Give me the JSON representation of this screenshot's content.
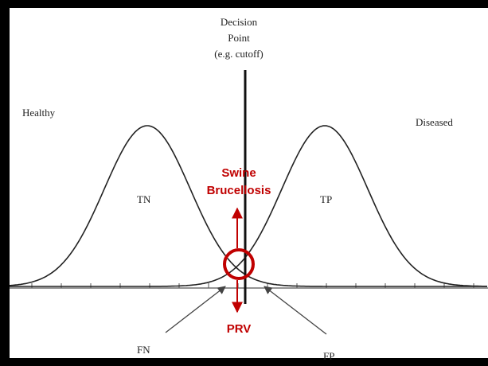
{
  "decision_point": {
    "lines": [
      "Decision",
      "Point",
      "(e.g. cutoff)"
    ]
  },
  "labels": {
    "healthy": "Healthy",
    "diseased": "Diseased",
    "tn": "TN",
    "tp": "TP",
    "fn": "FN",
    "fp": "FP"
  },
  "annotations": {
    "upper": [
      "Swine",
      "Brucellosis"
    ],
    "lower": "PRV"
  }
}
